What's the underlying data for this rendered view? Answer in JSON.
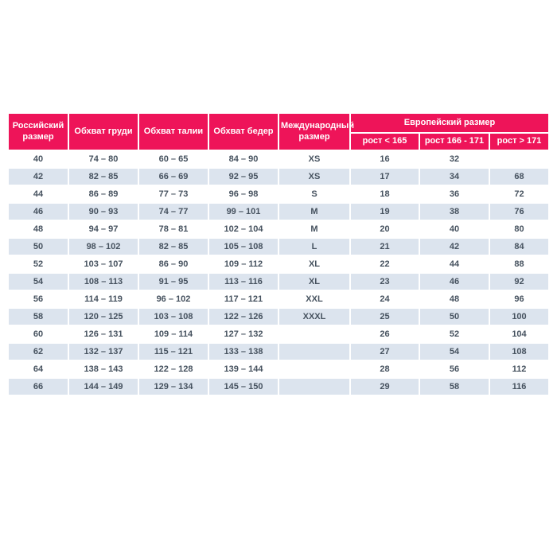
{
  "chart_data": {
    "type": "table",
    "title": "",
    "header": {
      "russian_size": "Российский размер",
      "chest": "Обхват груди",
      "waist": "Обхват талии",
      "hips": "Обхват бедер",
      "international": "Международный размер",
      "european_group": "Европейский размер",
      "sub_columns": [
        "рост < 165",
        "рост 166 - 171",
        "рост > 171"
      ]
    },
    "columns": [
      "Российский размер",
      "Обхват груди",
      "Обхват талии",
      "Обхват бедер",
      "Международный размер",
      "Европейский размер / рост < 165",
      "Европейский размер / рост 166 - 171",
      "Европейский размер / рост > 171"
    ],
    "rows": [
      [
        "40",
        "74 – 80",
        "60 – 65",
        "84 – 90",
        "XS",
        "16",
        "32",
        ""
      ],
      [
        "42",
        "82 – 85",
        "66 – 69",
        "92 – 95",
        "XS",
        "17",
        "34",
        "68"
      ],
      [
        "44",
        "86 – 89",
        "77 – 73",
        "96 – 98",
        "S",
        "18",
        "36",
        "72"
      ],
      [
        "46",
        "90 – 93",
        "74 – 77",
        "99 – 101",
        "M",
        "19",
        "38",
        "76"
      ],
      [
        "48",
        "94 – 97",
        "78 – 81",
        "102 – 104",
        "M",
        "20",
        "40",
        "80"
      ],
      [
        "50",
        "98 – 102",
        "82 – 85",
        "105 – 108",
        "L",
        "21",
        "42",
        "84"
      ],
      [
        "52",
        "103 – 107",
        "86 – 90",
        "109 – 112",
        "XL",
        "22",
        "44",
        "88"
      ],
      [
        "54",
        "108 – 113",
        "91 – 95",
        "113 – 116",
        "XL",
        "23",
        "46",
        "92"
      ],
      [
        "56",
        "114 – 119",
        "96 – 102",
        "117 – 121",
        "XXL",
        "24",
        "48",
        "96"
      ],
      [
        "58",
        "120 – 125",
        "103 – 108",
        "122 – 126",
        "XXXL",
        "25",
        "50",
        "100"
      ],
      [
        "60",
        "126 – 131",
        "109 – 114",
        "127 – 132",
        "",
        "26",
        "52",
        "104"
      ],
      [
        "62",
        "132 – 137",
        "115 – 121",
        "133 – 138",
        "",
        "27",
        "54",
        "108"
      ],
      [
        "64",
        "138 – 143",
        "122 – 128",
        "139 – 144",
        "",
        "28",
        "56",
        "112"
      ],
      [
        "66",
        "144 – 149",
        "129 – 134",
        "145 – 150",
        "",
        "29",
        "58",
        "116"
      ]
    ],
    "layout": {
      "alternating_rows": true,
      "grid": "white 2px separators",
      "legend_position": "none"
    }
  },
  "colors": {
    "header_bg": "#ee1459",
    "header_text": "#ffffff",
    "alt_row_bg": "#dce4ee",
    "body_text": "#46525f",
    "page_bg": "#ffffff"
  }
}
